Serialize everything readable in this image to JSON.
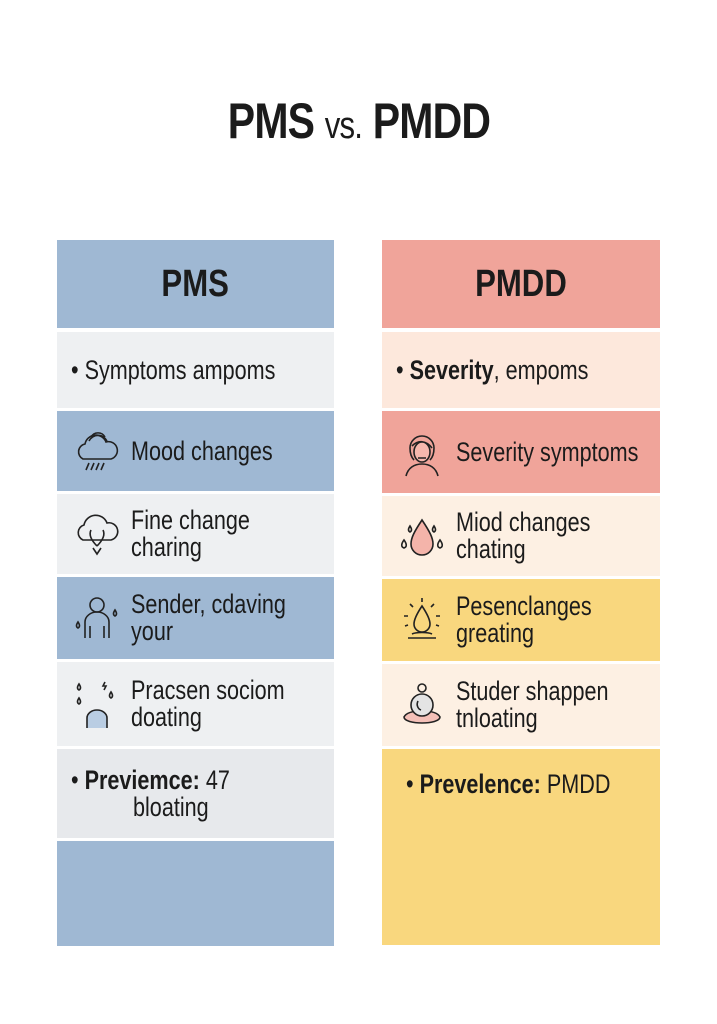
{
  "title": {
    "main_left": "PMS",
    "vs": "vs.",
    "main_right": "PMDD"
  },
  "colors": {
    "pms_blue": "#9fb8d3",
    "pms_light": "#eef0f2",
    "pmdd_pink": "#f0a49a",
    "pmdd_peach": "#fde8dc",
    "pmdd_cream": "#fdf0e3",
    "pmdd_yellow": "#f9d77e"
  },
  "pms": {
    "header": "PMS",
    "rows": [
      {
        "icon": "bullet",
        "line1": "Symptoms ampoms"
      },
      {
        "icon": "rain-cloud-icon",
        "line1": "Mood changes"
      },
      {
        "icon": "cloud-hands-icon",
        "line1": "Fine change",
        "line2": "charing"
      },
      {
        "icon": "person-sweat-icon",
        "line1": "Sender, cdaving",
        "line2": "your"
      },
      {
        "icon": "person-drops-icon",
        "line1": "Pracsen sociom",
        "line2": "doating"
      },
      {
        "icon": "bullet",
        "bold": "Previemce:",
        "line1": " 47",
        "line2": "bloating"
      }
    ]
  },
  "pmdd": {
    "header": "PMDD",
    "rows": [
      {
        "icon": "bullet",
        "bold": "Severity",
        "line1": ", empoms"
      },
      {
        "icon": "woman-face-icon",
        "line1": "Severity symptoms"
      },
      {
        "icon": "drop-icon",
        "line1": "Miod changes",
        "line2": "chating"
      },
      {
        "icon": "glowing-drop-icon",
        "line1": "Pesenclanges",
        "line2": "greating"
      },
      {
        "icon": "bloated-person-icon",
        "line1": "Studer shappen",
        "line2": "tnloating"
      },
      {
        "icon": "bullet",
        "bold": "Prevelence:",
        "line1": " PMDD"
      }
    ]
  }
}
